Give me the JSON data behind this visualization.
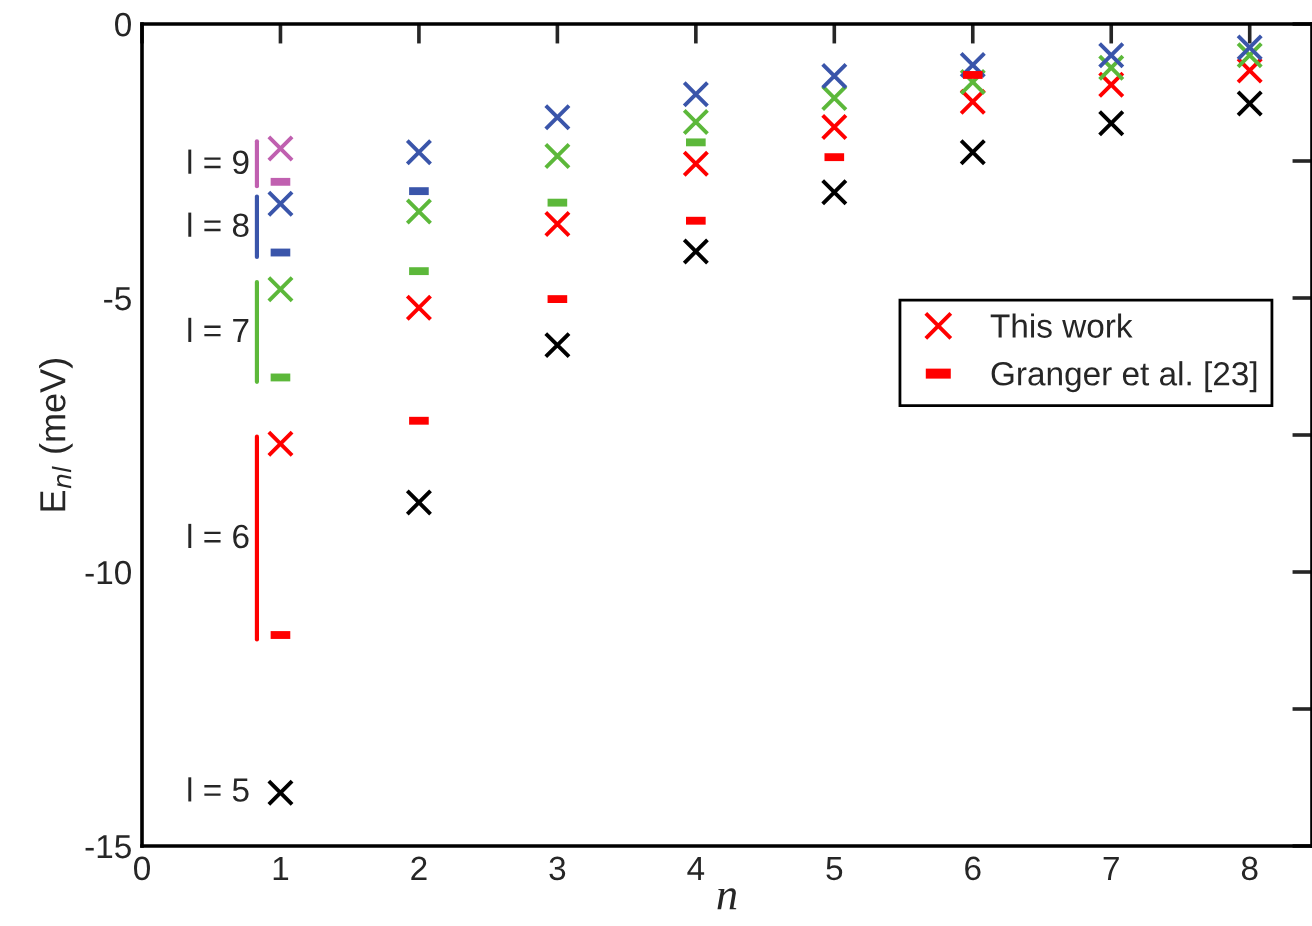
{
  "chart_data": {
    "type": "scatter",
    "xlabel": "n",
    "ylabel": "E$_{nl}$ (meV)",
    "xlim": [
      0,
      8.45
    ],
    "ylim": [
      -15,
      0
    ],
    "xticks": [
      0,
      1,
      2,
      3,
      4,
      5,
      6,
      7,
      8
    ],
    "yticks": [
      0,
      {
        "value": -2.5,
        "label": null
      },
      -5,
      {
        "value": -7.5,
        "label": null
      },
      -10,
      {
        "value": -12.5,
        "label": null
      },
      -15
    ],
    "grid": false,
    "legend": "center right",
    "series": [
      {
        "marker": "cross",
        "color": "#000000",
        "x": [
          1,
          2,
          3,
          4,
          5,
          6,
          7,
          8
        ],
        "values": [
          -14.03,
          -8.73,
          -5.86,
          -4.15,
          -3.07,
          -2.34,
          -1.81,
          -1.45
        ]
      },
      {
        "name": "This work",
        "marker": "cross",
        "color": "#ff0000",
        "x": [
          1,
          2,
          3,
          4,
          5,
          6,
          7,
          8
        ],
        "values": [
          -7.66,
          -5.18,
          -3.65,
          -2.55,
          -1.88,
          -1.42,
          -1.11,
          -0.85
        ]
      },
      {
        "marker": "cross",
        "color": "#5cb83a",
        "x": [
          1,
          2,
          3,
          4,
          5,
          6,
          7,
          8
        ],
        "values": [
          -4.84,
          -3.42,
          -2.41,
          -1.79,
          -1.35,
          -1.06,
          -0.8,
          -0.57
        ]
      },
      {
        "marker": "cross",
        "color": "#3a55aa",
        "x": [
          1,
          2,
          3,
          4,
          5,
          6,
          7,
          8
        ],
        "values": [
          -3.28,
          -2.34,
          -1.7,
          -1.28,
          -0.95,
          -0.75,
          -0.57,
          -0.43
        ]
      },
      {
        "marker": "cross",
        "color": "#c060b0",
        "x": [
          1
        ],
        "values": [
          -2.27
        ]
      },
      {
        "name": "Granger et al. [23]",
        "color": "#ff0000",
        "x": [
          1,
          2,
          3,
          4,
          5,
          6
        ],
        "values": [
          -11.15,
          -7.24,
          -5.02,
          -3.59,
          -2.43,
          -0.93
        ]
      },
      {
        "color": "#5cb83a",
        "x": [
          1,
          2,
          3,
          4
        ],
        "values": [
          -6.45,
          -4.51,
          -3.26,
          -2.16
        ]
      },
      {
        "color": "#3a55aa",
        "x": [
          1,
          2
        ],
        "values": [
          -4.17,
          -3.05
        ]
      },
      {
        "color": "#c060b0",
        "x": [
          1
        ],
        "values": [
          -2.88
        ]
      }
    ],
    "annotations": [
      "l = 9",
      "l = 8",
      "l = 7",
      "l = 6",
      "l = 5"
    ]
  }
}
